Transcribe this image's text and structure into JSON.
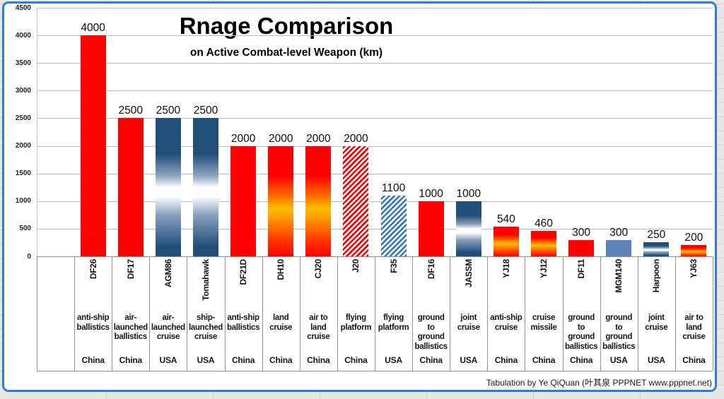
{
  "meta": {
    "attribution": "Tabulation by Ye QiQuan (叶其泉 PPPNET www.pppnet.net)"
  },
  "chart_data": {
    "type": "bar",
    "title": "Rnage Comparison",
    "subtitle": "on Active Combat-level Weapon (km)",
    "xlabel": "",
    "ylabel": "",
    "ylim": [
      0,
      4500
    ],
    "ytick_step": 500,
    "yticks": [
      0,
      500,
      1000,
      1500,
      2000,
      2500,
      3000,
      3500,
      4000,
      4500
    ],
    "grid": true,
    "legend": false,
    "bars": [
      {
        "name": "DF26",
        "value": 4000,
        "type": "anti-ship\nballistics",
        "country": "China",
        "fill": "red-solid"
      },
      {
        "name": "DF17",
        "value": 2500,
        "type": "air-\nlaunched\nballistics",
        "country": "China",
        "fill": "red-solid"
      },
      {
        "name": "AGM86",
        "value": 2500,
        "type": "air-\nlaunched\ncruise",
        "country": "USA",
        "fill": "navy-gradient"
      },
      {
        "name": "Tomahawk",
        "value": 2500,
        "type": "ship-\nlaunched\ncruise",
        "country": "USA",
        "fill": "navy-gradient"
      },
      {
        "name": "DF21D",
        "value": 2000,
        "type": "anti-ship\nballistics",
        "country": "China",
        "fill": "red-solid"
      },
      {
        "name": "DH10",
        "value": 2000,
        "type": "land\ncruise",
        "country": "China",
        "fill": "fire-gradient"
      },
      {
        "name": "CJ20",
        "value": 2000,
        "type": "air to\nland\ncruise",
        "country": "China",
        "fill": "fire-gradient"
      },
      {
        "name": "J20",
        "value": 2000,
        "type": "flying\nplatform",
        "country": "China",
        "fill": "red-hatch"
      },
      {
        "name": "F35",
        "value": 1100,
        "type": "flying\nplatform",
        "country": "USA",
        "fill": "blue-hatch"
      },
      {
        "name": "DF16",
        "value": 1000,
        "type": "ground\nto\nground\nballistics",
        "country": "China",
        "fill": "red-solid"
      },
      {
        "name": "JASSM",
        "value": 1000,
        "type": "joint\ncruise",
        "country": "USA",
        "fill": "navy-gradient"
      },
      {
        "name": "YJ18",
        "value": 540,
        "type": "anti-ship\ncruise",
        "country": "China",
        "fill": "fire-gradient"
      },
      {
        "name": "YJ12",
        "value": 460,
        "type": "cruise\nmissile",
        "country": "China",
        "fill": "fire-gradient"
      },
      {
        "name": "DF11",
        "value": 300,
        "type": "ground\nto\nground\nballistics",
        "country": "China",
        "fill": "red-solid"
      },
      {
        "name": "MGM140",
        "value": 300,
        "type": "ground\nto\nground\nballistics",
        "country": "USA",
        "fill": "steel-solid"
      },
      {
        "name": "Harpoon",
        "value": 250,
        "type": "joint\ncruise",
        "country": "USA",
        "fill": "navy-gradient"
      },
      {
        "name": "YJ63",
        "value": 200,
        "type": "air to\nland\ncruise",
        "country": "China",
        "fill": "fire-gradient"
      }
    ],
    "colors": {
      "red": "#fe0100",
      "fire_gold": "#ffbf00",
      "navy": "#1f4e79",
      "steel_blue": "#5b85b9",
      "hatch_blue": "#2e79bd",
      "frame_blue": "#2f7dd9",
      "gridline": "#b9b9b9"
    }
  }
}
